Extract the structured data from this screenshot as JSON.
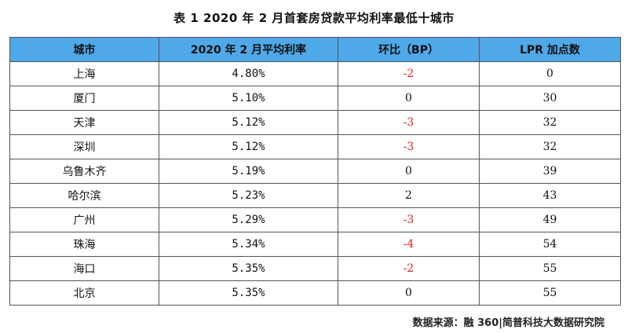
{
  "title": "表 1  2020 年 2 月首套房贷款平均利率最低十城市",
  "table": {
    "headers": [
      "城市",
      "2020 年 2 月平均利率",
      "环比（BP）",
      "LPR 加点数"
    ],
    "rows": [
      {
        "city": "上海",
        "rate": "4.80%",
        "mom": "-2",
        "lpr": "0"
      },
      {
        "city": "厦门",
        "rate": "5.10%",
        "mom": "0",
        "lpr": "30"
      },
      {
        "city": "天津",
        "rate": "5.12%",
        "mom": "-3",
        "lpr": "32"
      },
      {
        "city": "深圳",
        "rate": "5.12%",
        "mom": "-3",
        "lpr": "32"
      },
      {
        "city": "乌鲁木齐",
        "rate": "5.19%",
        "mom": "0",
        "lpr": "39"
      },
      {
        "city": "哈尔滨",
        "rate": "5.23%",
        "mom": "2",
        "lpr": "43"
      },
      {
        "city": "广州",
        "rate": "5.29%",
        "mom": "-3",
        "lpr": "49"
      },
      {
        "city": "珠海",
        "rate": "5.34%",
        "mom": "-4",
        "lpr": "54"
      },
      {
        "city": "海口",
        "rate": "5.35%",
        "mom": "-2",
        "lpr": "55"
      },
      {
        "city": "北京",
        "rate": "5.35%",
        "mom": "0",
        "lpr": "55"
      }
    ]
  },
  "source": "数据来源：融 360|简普科技大数据研究院",
  "colors": {
    "header_bg": "#4fa8e8",
    "negative": "#e02020"
  }
}
